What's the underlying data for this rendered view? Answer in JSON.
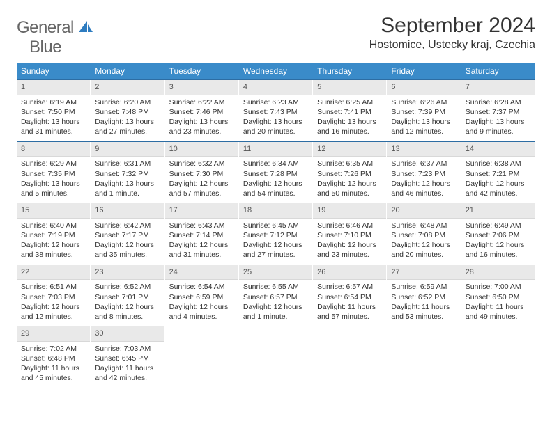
{
  "logo": {
    "word1": "General",
    "word2": "Blue"
  },
  "title": "September 2024",
  "location": "Hostomice, Ustecky kraj, Czechia",
  "colors": {
    "header_bg": "#3a8bc9",
    "header_text": "#ffffff",
    "daynum_bg": "#e9e9e9",
    "week_border": "#2d6da3",
    "logo_gray": "#666666",
    "logo_blue": "#2e7cc0"
  },
  "dow": [
    "Sunday",
    "Monday",
    "Tuesday",
    "Wednesday",
    "Thursday",
    "Friday",
    "Saturday"
  ],
  "weeks": [
    [
      {
        "n": "1",
        "sr": "Sunrise: 6:19 AM",
        "ss": "Sunset: 7:50 PM",
        "dl": "Daylight: 13 hours and 31 minutes."
      },
      {
        "n": "2",
        "sr": "Sunrise: 6:20 AM",
        "ss": "Sunset: 7:48 PM",
        "dl": "Daylight: 13 hours and 27 minutes."
      },
      {
        "n": "3",
        "sr": "Sunrise: 6:22 AM",
        "ss": "Sunset: 7:46 PM",
        "dl": "Daylight: 13 hours and 23 minutes."
      },
      {
        "n": "4",
        "sr": "Sunrise: 6:23 AM",
        "ss": "Sunset: 7:43 PM",
        "dl": "Daylight: 13 hours and 20 minutes."
      },
      {
        "n": "5",
        "sr": "Sunrise: 6:25 AM",
        "ss": "Sunset: 7:41 PM",
        "dl": "Daylight: 13 hours and 16 minutes."
      },
      {
        "n": "6",
        "sr": "Sunrise: 6:26 AM",
        "ss": "Sunset: 7:39 PM",
        "dl": "Daylight: 13 hours and 12 minutes."
      },
      {
        "n": "7",
        "sr": "Sunrise: 6:28 AM",
        "ss": "Sunset: 7:37 PM",
        "dl": "Daylight: 13 hours and 9 minutes."
      }
    ],
    [
      {
        "n": "8",
        "sr": "Sunrise: 6:29 AM",
        "ss": "Sunset: 7:35 PM",
        "dl": "Daylight: 13 hours and 5 minutes."
      },
      {
        "n": "9",
        "sr": "Sunrise: 6:31 AM",
        "ss": "Sunset: 7:32 PM",
        "dl": "Daylight: 13 hours and 1 minute."
      },
      {
        "n": "10",
        "sr": "Sunrise: 6:32 AM",
        "ss": "Sunset: 7:30 PM",
        "dl": "Daylight: 12 hours and 57 minutes."
      },
      {
        "n": "11",
        "sr": "Sunrise: 6:34 AM",
        "ss": "Sunset: 7:28 PM",
        "dl": "Daylight: 12 hours and 54 minutes."
      },
      {
        "n": "12",
        "sr": "Sunrise: 6:35 AM",
        "ss": "Sunset: 7:26 PM",
        "dl": "Daylight: 12 hours and 50 minutes."
      },
      {
        "n": "13",
        "sr": "Sunrise: 6:37 AM",
        "ss": "Sunset: 7:23 PM",
        "dl": "Daylight: 12 hours and 46 minutes."
      },
      {
        "n": "14",
        "sr": "Sunrise: 6:38 AM",
        "ss": "Sunset: 7:21 PM",
        "dl": "Daylight: 12 hours and 42 minutes."
      }
    ],
    [
      {
        "n": "15",
        "sr": "Sunrise: 6:40 AM",
        "ss": "Sunset: 7:19 PM",
        "dl": "Daylight: 12 hours and 38 minutes."
      },
      {
        "n": "16",
        "sr": "Sunrise: 6:42 AM",
        "ss": "Sunset: 7:17 PM",
        "dl": "Daylight: 12 hours and 35 minutes."
      },
      {
        "n": "17",
        "sr": "Sunrise: 6:43 AM",
        "ss": "Sunset: 7:14 PM",
        "dl": "Daylight: 12 hours and 31 minutes."
      },
      {
        "n": "18",
        "sr": "Sunrise: 6:45 AM",
        "ss": "Sunset: 7:12 PM",
        "dl": "Daylight: 12 hours and 27 minutes."
      },
      {
        "n": "19",
        "sr": "Sunrise: 6:46 AM",
        "ss": "Sunset: 7:10 PM",
        "dl": "Daylight: 12 hours and 23 minutes."
      },
      {
        "n": "20",
        "sr": "Sunrise: 6:48 AM",
        "ss": "Sunset: 7:08 PM",
        "dl": "Daylight: 12 hours and 20 minutes."
      },
      {
        "n": "21",
        "sr": "Sunrise: 6:49 AM",
        "ss": "Sunset: 7:06 PM",
        "dl": "Daylight: 12 hours and 16 minutes."
      }
    ],
    [
      {
        "n": "22",
        "sr": "Sunrise: 6:51 AM",
        "ss": "Sunset: 7:03 PM",
        "dl": "Daylight: 12 hours and 12 minutes."
      },
      {
        "n": "23",
        "sr": "Sunrise: 6:52 AM",
        "ss": "Sunset: 7:01 PM",
        "dl": "Daylight: 12 hours and 8 minutes."
      },
      {
        "n": "24",
        "sr": "Sunrise: 6:54 AM",
        "ss": "Sunset: 6:59 PM",
        "dl": "Daylight: 12 hours and 4 minutes."
      },
      {
        "n": "25",
        "sr": "Sunrise: 6:55 AM",
        "ss": "Sunset: 6:57 PM",
        "dl": "Daylight: 12 hours and 1 minute."
      },
      {
        "n": "26",
        "sr": "Sunrise: 6:57 AM",
        "ss": "Sunset: 6:54 PM",
        "dl": "Daylight: 11 hours and 57 minutes."
      },
      {
        "n": "27",
        "sr": "Sunrise: 6:59 AM",
        "ss": "Sunset: 6:52 PM",
        "dl": "Daylight: 11 hours and 53 minutes."
      },
      {
        "n": "28",
        "sr": "Sunrise: 7:00 AM",
        "ss": "Sunset: 6:50 PM",
        "dl": "Daylight: 11 hours and 49 minutes."
      }
    ],
    [
      {
        "n": "29",
        "sr": "Sunrise: 7:02 AM",
        "ss": "Sunset: 6:48 PM",
        "dl": "Daylight: 11 hours and 45 minutes."
      },
      {
        "n": "30",
        "sr": "Sunrise: 7:03 AM",
        "ss": "Sunset: 6:45 PM",
        "dl": "Daylight: 11 hours and 42 minutes."
      },
      {
        "empty": true
      },
      {
        "empty": true
      },
      {
        "empty": true
      },
      {
        "empty": true
      },
      {
        "empty": true
      }
    ]
  ]
}
